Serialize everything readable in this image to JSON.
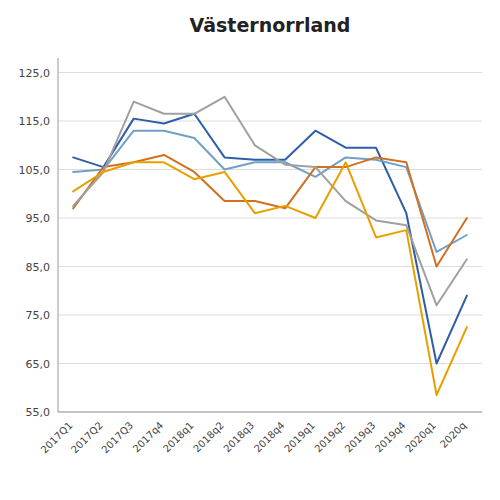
{
  "chart_data": {
    "type": "line",
    "title": "Västernorrland",
    "categories": [
      "2017Q1",
      "2017Q2",
      "2017Q3",
      "2017q4",
      "2018q1",
      "2018q2",
      "2018q3",
      "2018q4",
      "2019q1",
      "2019q2",
      "2019q3",
      "2019q4",
      "2020q1",
      "2020q"
    ],
    "series": [
      {
        "color": "#2E5EA8",
        "values": [
          107.5,
          105.5,
          115.5,
          114.5,
          116.5,
          107.5,
          107.0,
          107.0,
          113.0,
          109.5,
          109.5,
          96.0,
          65.0,
          79.0
        ]
      },
      {
        "color": "#70A0C8",
        "values": [
          104.5,
          105.0,
          113.0,
          113.0,
          111.5,
          105.0,
          106.5,
          106.5,
          103.5,
          107.5,
          107.0,
          105.5,
          88.0,
          91.5
        ]
      },
      {
        "color": "#D07020",
        "values": [
          97.0,
          105.5,
          106.5,
          108.0,
          104.5,
          98.5,
          98.5,
          97.0,
          105.5,
          105.5,
          107.5,
          106.5,
          85.0,
          95.0
        ]
      },
      {
        "color": "#A0A0A0",
        "values": [
          97.5,
          104.5,
          119.0,
          116.5,
          116.5,
          120.0,
          110.0,
          106.0,
          105.5,
          98.5,
          94.5,
          93.5,
          77.0,
          86.5
        ]
      },
      {
        "color": "#E8A000",
        "values": [
          100.5,
          104.5,
          106.5,
          106.5,
          103.0,
          104.5,
          96.0,
          97.5,
          95.0,
          106.5,
          91.0,
          92.5,
          58.5,
          72.5
        ]
      }
    ],
    "ylim": [
      55.0,
      128.0
    ],
    "yticks": [
      {
        "value": 55.0,
        "label": "55,0"
      },
      {
        "value": 65.0,
        "label": "65,0"
      },
      {
        "value": 75.0,
        "label": "75,0"
      },
      {
        "value": 85.0,
        "label": "85,0"
      },
      {
        "value": 95.0,
        "label": "95,0"
      },
      {
        "value": 105.0,
        "label": "105,0"
      },
      {
        "value": 115.0,
        "label": "115,0"
      },
      {
        "value": 125.0,
        "label": "125,0"
      }
    ],
    "grid": true
  }
}
